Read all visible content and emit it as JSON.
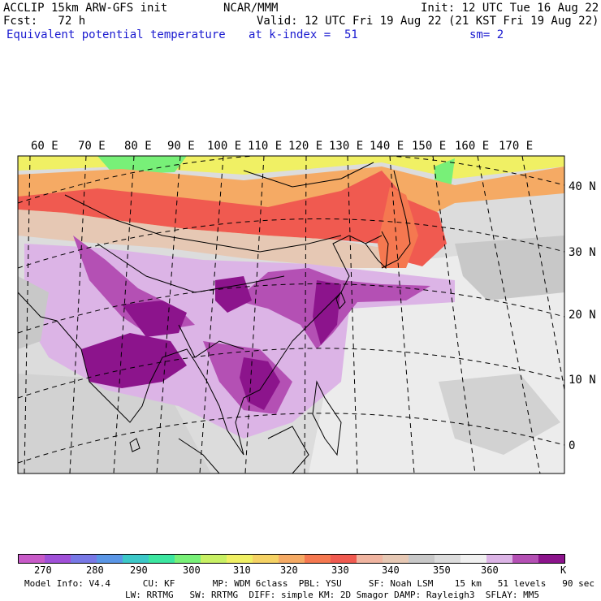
{
  "header": {
    "model": "ACCLIP 15km ARW-GFS init",
    "center": "NCAR/MMM",
    "init": "Init: 12 UTC Tue 16 Aug 22",
    "fcst": "Fcst:   72 h",
    "valid": "Valid: 12 UTC Fri 19 Aug 22 (21 KST Fri 19 Aug 22)",
    "field": "Equivalent potential temperature",
    "level": "at k-index =  51",
    "smooth": "sm= 2"
  },
  "map": {
    "lon_labels": [
      "60 E",
      "70 E",
      "80 E",
      "90 E",
      "100 E",
      "110 E",
      "120 E",
      "130 E",
      "140 E",
      "150 E",
      "160 E",
      "170 E"
    ],
    "lat_labels": [
      "40 N",
      "30 N",
      "20 N",
      "10 N",
      "0"
    ]
  },
  "colorbar": {
    "colors": [
      "#c85ac8",
      "#a050d8",
      "#7878e6",
      "#5a96e6",
      "#3cc8c8",
      "#3ce6a0",
      "#78f078",
      "#c8f064",
      "#f0f064",
      "#f5d264",
      "#f5aa64",
      "#f57850",
      "#f05a50",
      "#f0b4a0",
      "#e6c8b4",
      "#c8c8c8",
      "#dcdcdc",
      "#f0f0f0",
      "#dcb4e6",
      "#b450b4",
      "#8c148c"
    ],
    "ticks": [
      "270",
      "280",
      "290",
      "300",
      "310",
      "320",
      "330",
      "340",
      "350",
      "360",
      "K"
    ]
  },
  "footer": {
    "line1": "Model Info: V4.4      CU: KF       MP: WDM 6class  PBL: YSU     SF: Noah LSM    15 km   51 levels   90 sec",
    "line2": "LW: RRTMG   SW: RRTMG  DIFF: simple KM: 2D Smagor DAMP: Rayleigh3  SFLAY: MM5"
  }
}
